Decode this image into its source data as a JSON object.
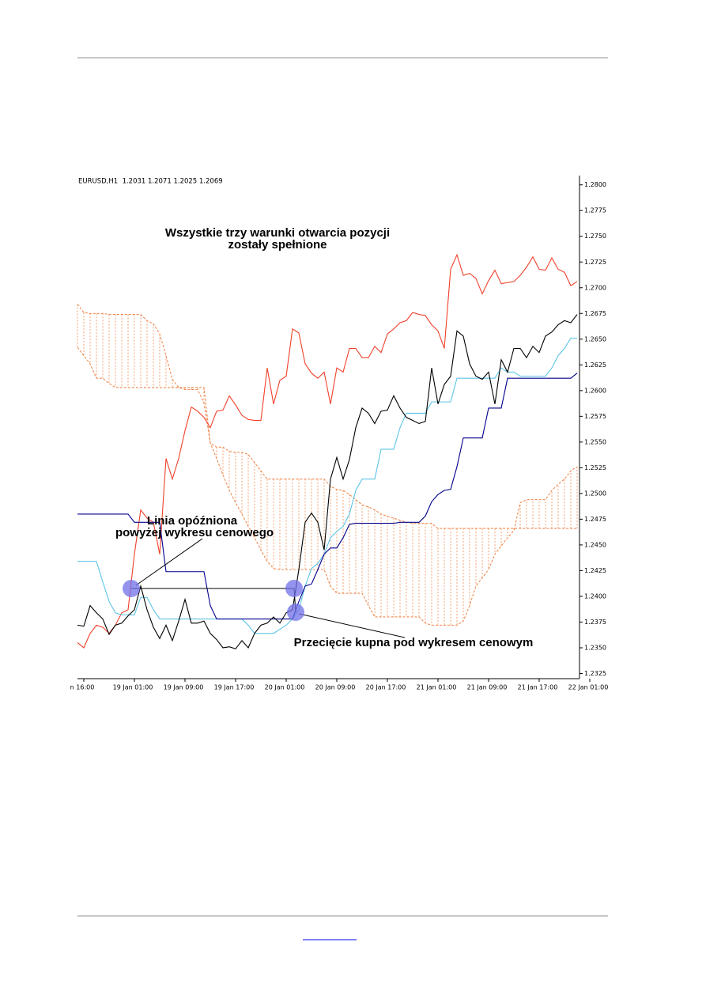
{
  "chart_data": {
    "type": "line",
    "title": [
      "Wszystkie trzy warunki otwarcia pozycji",
      "zostały spełnione"
    ],
    "subtitle": "EURUSD,H1  1.2031 1.2071 1.2025 1.2069",
    "annotations": [
      "Linia opóźniona",
      "powyżej wykresu cenowego",
      "Przecięcie kupna pod wykresem cenowym"
    ],
    "categories": [
      null,
      "n 16:00",
      null,
      null,
      null,
      null,
      null,
      null,
      null,
      "19 Jan 01:00",
      null,
      null,
      null,
      null,
      null,
      null,
      null,
      "19 Jan 09:00",
      null,
      null,
      null,
      null,
      null,
      null,
      null,
      "19 Jan 17:00",
      null,
      null,
      null,
      null,
      null,
      null,
      null,
      "20 Jan 01:00",
      null,
      null,
      null,
      null,
      null,
      null,
      null,
      "20 Jan 09:00",
      null,
      null,
      null,
      null,
      null,
      null,
      null,
      "20 Jan 17:00",
      null,
      null,
      null,
      null,
      null,
      null,
      null,
      "21 Jan 01:00",
      null,
      null,
      null,
      null,
      null,
      null,
      null,
      "21 Jan 09:00",
      null,
      null,
      null,
      null,
      null,
      null,
      null,
      "21 Jan 17:00",
      null,
      null,
      null,
      null,
      null,
      null,
      null,
      "22 Jan 01:00"
    ],
    "series": [
      {
        "color": "#f0402a",
        "values": [
          1.2355,
          1.235,
          1.2364,
          1.2372,
          1.237,
          1.2364,
          1.2372,
          1.2384,
          1.2387,
          1.2441,
          1.2484,
          1.2476,
          1.2472,
          1.2441,
          1.2534,
          1.2514,
          1.2534,
          1.2561,
          1.2584,
          1.258,
          1.2574,
          1.2564,
          1.258,
          1.2581,
          1.2595,
          1.2586,
          1.2576,
          1.2572,
          1.2571,
          1.2571,
          1.2622,
          1.2587,
          1.261,
          1.2614,
          1.266,
          1.2656,
          1.2626,
          1.2617,
          1.2612,
          1.2618,
          1.2587,
          1.2622,
          1.2618,
          1.2641,
          1.2641,
          1.2632,
          1.2632,
          1.2643,
          1.2637,
          1.2655,
          1.266,
          1.2666,
          1.2668,
          1.2676,
          1.2674,
          1.2673,
          1.2664,
          1.2658,
          1.2641,
          1.2718,
          1.2732,
          1.2712,
          1.2714,
          1.2709,
          1.2694,
          1.2707,
          1.2717,
          1.2704,
          1.2705,
          1.2706,
          1.2712,
          1.272,
          1.273,
          1.2718,
          1.2717,
          1.2729,
          1.2718,
          1.2715,
          1.2702,
          1.2706,
          null,
          null
        ]
      },
      {
        "color": "#5cc4e6",
        "values": [
          1.2434,
          1.2434,
          1.2434,
          1.2434,
          1.2414,
          1.2395,
          1.2384,
          1.2382,
          1.2382,
          1.2382,
          1.2399,
          1.2399,
          1.2387,
          1.2378,
          1.2378,
          1.2378,
          1.2378,
          1.2378,
          1.2378,
          1.2378,
          1.2378,
          1.2378,
          1.2378,
          1.2378,
          1.2378,
          1.2378,
          1.2378,
          1.2372,
          1.2364,
          1.2364,
          1.2364,
          1.2364,
          1.2368,
          1.2372,
          1.2378,
          1.2387,
          1.241,
          1.2427,
          1.2432,
          1.2441,
          1.2457,
          1.2463,
          1.2468,
          1.248,
          1.2503,
          1.2514,
          1.2514,
          1.2514,
          1.2543,
          1.2543,
          1.2543,
          1.2564,
          1.2578,
          1.2578,
          1.2578,
          1.2578,
          1.2589,
          1.2589,
          1.2589,
          1.2589,
          1.2612,
          1.2612,
          1.2612,
          1.2612,
          1.2612,
          1.2612,
          1.2612,
          1.2622,
          1.2618,
          1.2618,
          1.2614,
          1.2614,
          1.2614,
          1.2614,
          1.2614,
          1.2622,
          1.2634,
          1.2641,
          1.2651,
          1.2651,
          null,
          null
        ]
      },
      {
        "color": "#00008b",
        "values": [
          1.248,
          1.248,
          1.248,
          1.248,
          1.248,
          1.248,
          1.248,
          1.248,
          1.248,
          1.2472,
          1.2472,
          1.2472,
          1.2472,
          1.2472,
          1.2424,
          1.2424,
          1.2424,
          1.2424,
          1.2424,
          1.2424,
          1.2424,
          1.2391,
          1.2378,
          1.2378,
          1.2378,
          1.2378,
          1.2378,
          1.2378,
          1.2378,
          1.2378,
          1.2378,
          1.2378,
          1.2378,
          1.2378,
          1.2378,
          1.2395,
          1.241,
          1.2412,
          1.2426,
          1.2441,
          1.2447,
          1.2447,
          1.2457,
          1.247,
          1.2471,
          1.2471,
          1.2471,
          1.2471,
          1.2471,
          1.2471,
          1.2471,
          1.2472,
          1.2472,
          1.2472,
          1.2472,
          1.2478,
          1.2492,
          1.2499,
          1.2503,
          1.2504,
          1.2526,
          1.2554,
          1.2554,
          1.2554,
          1.2554,
          1.2583,
          1.2583,
          1.2583,
          1.2612,
          1.2612,
          1.2612,
          1.2612,
          1.2612,
          1.2612,
          1.2612,
          1.2612,
          1.2612,
          1.2612,
          1.2612,
          1.2617,
          null,
          null
        ]
      },
      {
        "color": "#000000",
        "values": [
          1.2372,
          1.2371,
          1.2391,
          1.2384,
          1.2378,
          1.2363,
          1.2372,
          1.2374,
          1.2381,
          1.2387,
          1.241,
          1.2387,
          1.237,
          1.2359,
          1.2372,
          1.2357,
          1.2376,
          1.2397,
          1.2374,
          1.2374,
          1.2376,
          1.2364,
          1.2358,
          1.235,
          1.2351,
          1.2349,
          1.2357,
          1.235,
          1.2364,
          1.2372,
          1.2374,
          1.238,
          1.2374,
          1.2384,
          1.2387,
          1.2426,
          1.2472,
          1.2481,
          1.2472,
          1.2445,
          1.2514,
          1.2535,
          1.2514,
          1.2533,
          1.2564,
          1.2583,
          1.2578,
          1.2568,
          1.258,
          1.2581,
          1.2595,
          1.2583,
          1.2574,
          1.2571,
          1.2568,
          1.257,
          1.2622,
          1.2587,
          1.2606,
          1.2614,
          1.2658,
          1.2653,
          1.2626,
          1.2614,
          1.2611,
          1.2618,
          1.2587,
          1.263,
          1.2618,
          1.2641,
          1.2641,
          1.2632,
          1.2643,
          1.2637,
          1.2653,
          1.2657,
          1.2664,
          1.2668,
          1.2666,
          1.2674,
          null,
          null
        ]
      },
      {
        "color": "#f08a50",
        "dashed": true,
        "values": [
          1.2684,
          1.2676,
          1.2675,
          1.2675,
          1.2675,
          1.2674,
          1.2674,
          1.2674,
          1.2674,
          1.2674,
          1.2674,
          1.2668,
          1.2665,
          1.2655,
          1.2634,
          1.2611,
          1.2603,
          1.2601,
          1.2601,
          1.2601,
          1.2588,
          1.2549,
          1.2545,
          1.2545,
          1.2541,
          1.254,
          1.254,
          1.2538,
          1.253,
          1.2522,
          1.2514,
          1.2514,
          1.2514,
          1.2514,
          1.2514,
          1.2514,
          1.2514,
          1.2514,
          1.2514,
          1.2514,
          1.2507,
          1.2504,
          1.2503,
          1.2499,
          1.2494,
          1.2489,
          1.2487,
          1.2484,
          1.248,
          1.2478,
          1.2476,
          1.2474,
          1.2472,
          1.2471,
          1.2471,
          1.2471,
          1.2471,
          1.2466,
          1.2466,
          1.2466,
          1.2466,
          1.2466,
          1.2466,
          1.2466,
          1.2466,
          1.2466,
          1.2466,
          1.2466,
          1.2466,
          1.2466,
          1.2466,
          1.2466,
          1.2466,
          1.2466,
          1.2466,
          1.2466,
          1.2466,
          1.2466,
          1.2466,
          1.2466,
          null,
          null
        ]
      },
      {
        "color": "#f08a50",
        "dashed": true,
        "values": [
          1.2642,
          1.2634,
          1.2626,
          1.2612,
          1.2612,
          1.2607,
          1.2603,
          1.2603,
          1.2603,
          1.2603,
          1.2603,
          1.2603,
          1.2603,
          1.2603,
          1.2603,
          1.2603,
          1.2603,
          1.2603,
          1.2603,
          1.2603,
          1.2603,
          1.2549,
          1.2534,
          1.2518,
          1.2503,
          1.2491,
          1.248,
          1.2468,
          1.2457,
          1.2445,
          1.2434,
          1.2427,
          1.2426,
          1.2426,
          1.2426,
          1.2426,
          1.2426,
          1.2426,
          1.2426,
          1.2426,
          1.241,
          1.2403,
          1.2403,
          1.2403,
          1.2403,
          1.2403,
          1.2391,
          1.238,
          1.238,
          1.238,
          1.238,
          1.238,
          1.238,
          1.238,
          1.238,
          1.2374,
          1.2372,
          1.2372,
          1.2372,
          1.2372,
          1.2372,
          1.2376,
          1.2391,
          1.241,
          1.2418,
          1.2426,
          1.2441,
          1.2449,
          1.2457,
          1.2464,
          1.2491,
          1.2494,
          1.2494,
          1.2494,
          1.2494,
          1.2503,
          1.2509,
          1.2514,
          1.2522,
          1.2526,
          null,
          null
        ]
      }
    ],
    "cloud": true,
    "ylim": [
      1.232,
      1.2809
    ],
    "yticks": [
      1.2325,
      {
        "value": 1.235,
        "label": "1.2350"
      },
      1.2375,
      {
        "value": 1.24,
        "label": "1.2400"
      },
      1.2425,
      {
        "value": 1.245,
        "label": "1.2450"
      },
      1.2475,
      {
        "value": 1.25,
        "label": "1.2500"
      },
      1.2525,
      {
        "value": 1.255,
        "label": "1.2550"
      },
      1.2575,
      {
        "value": 1.26,
        "label": "1.2600"
      },
      1.2625,
      {
        "value": 1.265,
        "label": "1.2650"
      },
      1.2675,
      {
        "value": 1.27,
        "label": "1.2700"
      },
      1.2725,
      {
        "value": 1.275,
        "label": "1.2750"
      },
      1.2775,
      {
        "value": 1.28,
        "label": "1.2800"
      }
    ]
  }
}
